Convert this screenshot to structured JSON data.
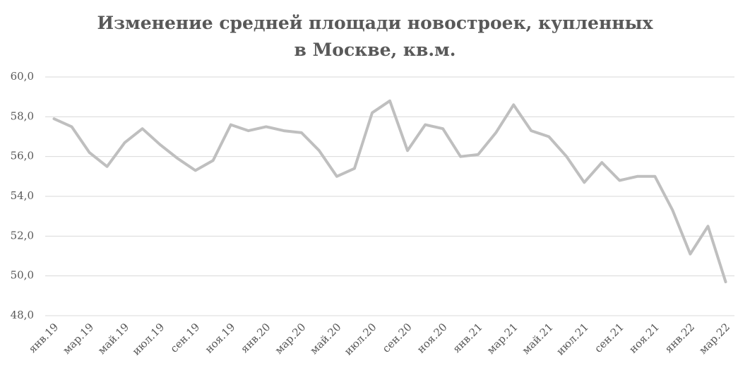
{
  "chart_data": {
    "type": "line",
    "title": "Изменение средней площади новостроек, купленных в Москве, кв.м.",
    "categories": [
      "янв.19",
      null,
      "мар.19",
      null,
      "май.19",
      null,
      "июл.19",
      null,
      "сен.19",
      null,
      "ноя.19",
      null,
      "янв.20",
      null,
      "мар.20",
      null,
      "май.20",
      null,
      "июл.20",
      null,
      "сен.20",
      null,
      "ноя.20",
      null,
      "янв.21",
      null,
      "мар.21",
      null,
      "май.21",
      null,
      "июл.21",
      null,
      "сен.21",
      null,
      "ноя.21",
      null,
      "янв.22",
      null,
      "мар.22"
    ],
    "values": [
      57.9,
      57.5,
      56.2,
      55.5,
      56.7,
      57.4,
      56.6,
      55.9,
      55.3,
      55.8,
      57.6,
      57.3,
      57.5,
      57.3,
      57.2,
      56.3,
      55.0,
      55.4,
      58.2,
      58.8,
      56.3,
      57.6,
      57.4,
      56.0,
      56.1,
      57.2,
      58.6,
      57.3,
      57.0,
      56.0,
      54.7,
      55.7,
      54.8,
      55.0,
      55.0,
      53.3,
      51.1,
      52.5,
      49.7
    ],
    "color": "#bfbfbf",
    "ylim": [
      48,
      60
    ],
    "yticks": [
      {
        "value": 48,
        "label": "48,0"
      },
      {
        "value": 50,
        "label": "50,0"
      },
      {
        "value": 52,
        "label": "52,0"
      },
      {
        "value": 54,
        "label": "54,0"
      },
      {
        "value": 56,
        "label": "56,0"
      },
      {
        "value": 58,
        "label": "58,0"
      },
      {
        "value": 60,
        "label": "60,0"
      }
    ],
    "grid": true
  }
}
